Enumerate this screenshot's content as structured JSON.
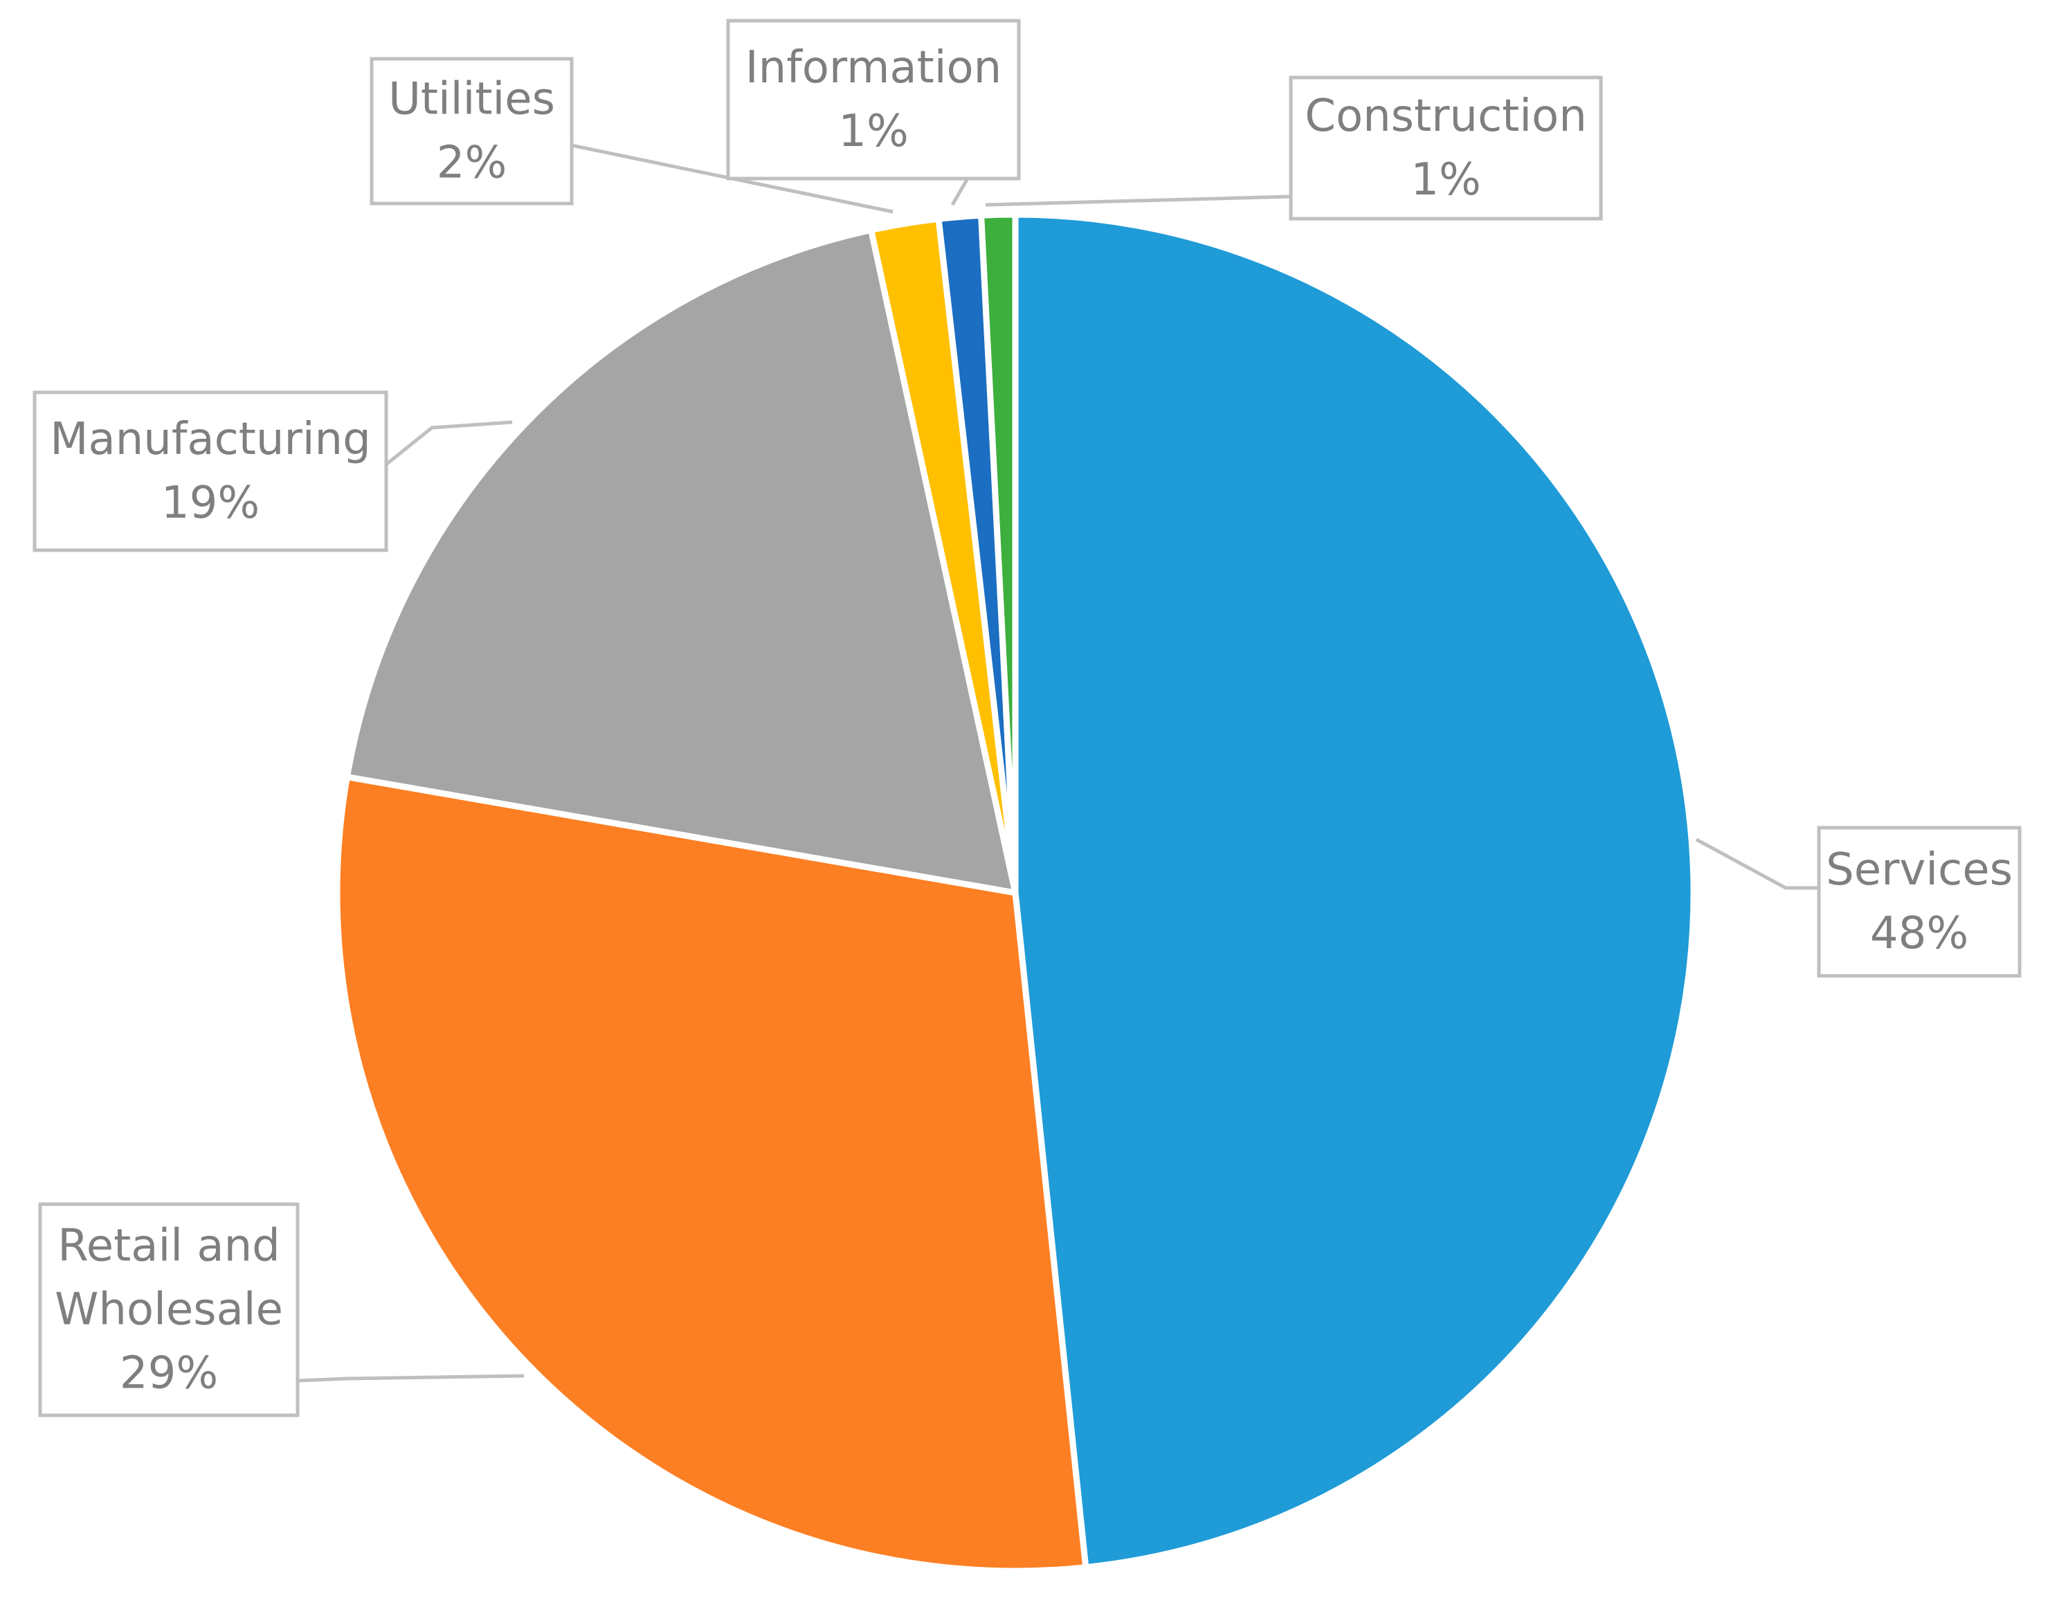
{
  "chart_data": {
    "type": "pie",
    "start_angle_deg": 0,
    "direction": "clockwise",
    "legend": "none",
    "slices": [
      {
        "label_lines": [
          "Services"
        ],
        "percent_label": "48%",
        "value": 48.2,
        "color": "#1f9bd7"
      },
      {
        "label_lines": [
          "Retail and",
          "Wholesale"
        ],
        "percent_label": "29%",
        "value": 29.3,
        "color": "#fd7f23"
      },
      {
        "label_lines": [
          "Manufacturing"
        ],
        "percent_label": "19%",
        "value": 18.8,
        "color": "#a5a5a5"
      },
      {
        "label_lines": [
          "Utilities"
        ],
        "percent_label": "2%",
        "value": 1.6,
        "color": "#ffc000"
      },
      {
        "label_lines": [
          "Information"
        ],
        "percent_label": "1%",
        "value": 1.0,
        "color": "#1b6ec2"
      },
      {
        "label_lines": [
          "Construction"
        ],
        "percent_label": "1%",
        "value": 0.8,
        "color": "#3daf3d"
      }
    ]
  }
}
